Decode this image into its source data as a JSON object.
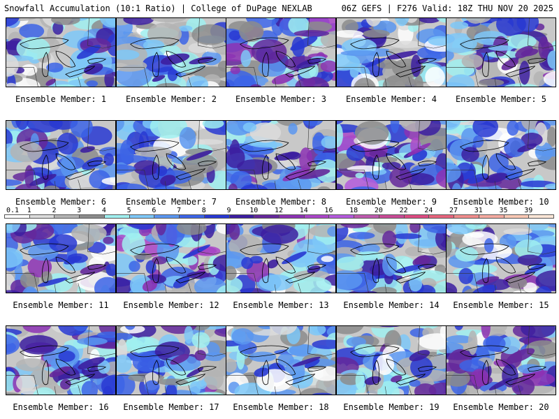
{
  "header": {
    "left_title": "Snowfall Accumulation (10:1 Ratio) | College of DuPage NEXLAB",
    "right_title": "06Z GEFS | F276 Valid: 18Z THU NOV 20 2025"
  },
  "colorbar": {
    "ticks": [
      "0.1",
      "1",
      "2",
      "3",
      "4",
      "5",
      "6",
      "7",
      "8",
      "9",
      "10",
      "12",
      "14",
      "16",
      "18",
      "20",
      "22",
      "24",
      "27",
      "31",
      "35",
      "39"
    ],
    "colors": [
      "#ffffff",
      "#dcdcdc",
      "#b4b4b4",
      "#8c8c8c",
      "#a0f0f0",
      "#7ec8f8",
      "#5a96f0",
      "#3c64e6",
      "#2838d2",
      "#3c1ea0",
      "#64289b",
      "#8c32b4",
      "#aa46c8",
      "#b45adc",
      "#be5aaf",
      "#c84b96",
      "#dc4b82",
      "#e6647d",
      "#f08c8c",
      "#f5aaa0",
      "#fac8b4",
      "#fde6d7"
    ]
  },
  "panels": [
    {
      "label": "Ensemble Member: 1",
      "intensity": 0.45
    },
    {
      "label": "Ensemble Member: 2",
      "intensity": 0.35
    },
    {
      "label": "Ensemble Member: 3",
      "intensity": 0.65
    },
    {
      "label": "Ensemble Member: 4",
      "intensity": 0.4
    },
    {
      "label": "Ensemble Member: 5",
      "intensity": 0.55
    },
    {
      "label": "Ensemble Member: 6",
      "intensity": 0.5
    },
    {
      "label": "Ensemble Member: 7",
      "intensity": 0.45
    },
    {
      "label": "Ensemble Member: 8",
      "intensity": 0.6
    },
    {
      "label": "Ensemble Member: 9",
      "intensity": 0.8
    },
    {
      "label": "Ensemble Member: 10",
      "intensity": 0.45
    },
    {
      "label": "Ensemble Member: 11",
      "intensity": 0.55
    },
    {
      "label": "Ensemble Member: 12",
      "intensity": 0.75
    },
    {
      "label": "Ensemble Member: 13",
      "intensity": 0.55
    },
    {
      "label": "Ensemble Member: 14",
      "intensity": 0.5
    },
    {
      "label": "Ensemble Member: 15",
      "intensity": 0.55
    },
    {
      "label": "Ensemble Member: 16",
      "intensity": 0.6
    },
    {
      "label": "Ensemble Member: 17",
      "intensity": 0.55
    },
    {
      "label": "Ensemble Member: 18",
      "intensity": 0.3
    },
    {
      "label": "Ensemble Member: 19",
      "intensity": 0.5
    },
    {
      "label": "Ensemble Member: 20",
      "intensity": 0.6
    }
  ]
}
